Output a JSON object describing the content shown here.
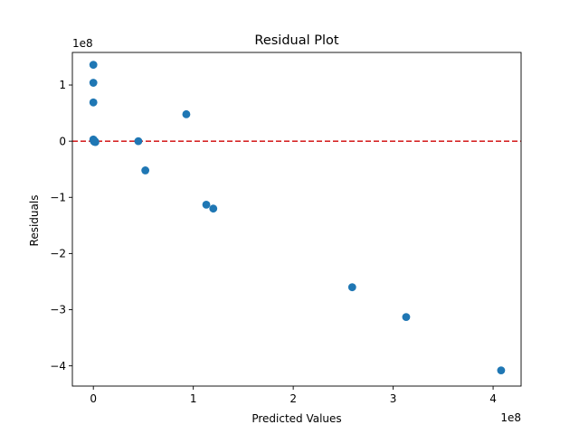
{
  "chart_data": {
    "type": "scatter",
    "title": "Residual Plot",
    "xlabel": "Predicted Values",
    "ylabel": "Residuals",
    "x_offset_label": "1e8",
    "y_offset_label": "1e8",
    "xlim": [
      -0.21,
      4.28
    ],
    "ylim": [
      -4.36,
      1.58
    ],
    "x_ticks": [
      0,
      1,
      2,
      3,
      4
    ],
    "y_ticks": [
      -4,
      -3,
      -2,
      -1,
      0,
      1
    ],
    "x_tick_labels": [
      "0",
      "1",
      "2",
      "3",
      "4"
    ],
    "y_tick_labels": [
      "−4",
      "−3",
      "−2",
      "−1",
      "0",
      "1"
    ],
    "grid": false,
    "reference_line": {
      "y": 0,
      "style": "dashed",
      "color": "#d62728"
    },
    "marker_color": "#1f77b4",
    "series": [
      {
        "x": [
          0.0,
          0.0,
          0.0,
          0.0,
          0.005,
          0.01,
          0.015,
          0.02,
          0.45,
          0.52,
          0.93,
          1.13,
          1.2,
          2.59,
          3.13,
          4.08
        ],
        "y": [
          1.36,
          1.04,
          0.69,
          0.03,
          0.0,
          -0.01,
          0.0,
          -0.015,
          0.0,
          -0.52,
          0.48,
          -1.13,
          -1.2,
          -2.6,
          -3.13,
          -4.08
        ]
      }
    ]
  }
}
